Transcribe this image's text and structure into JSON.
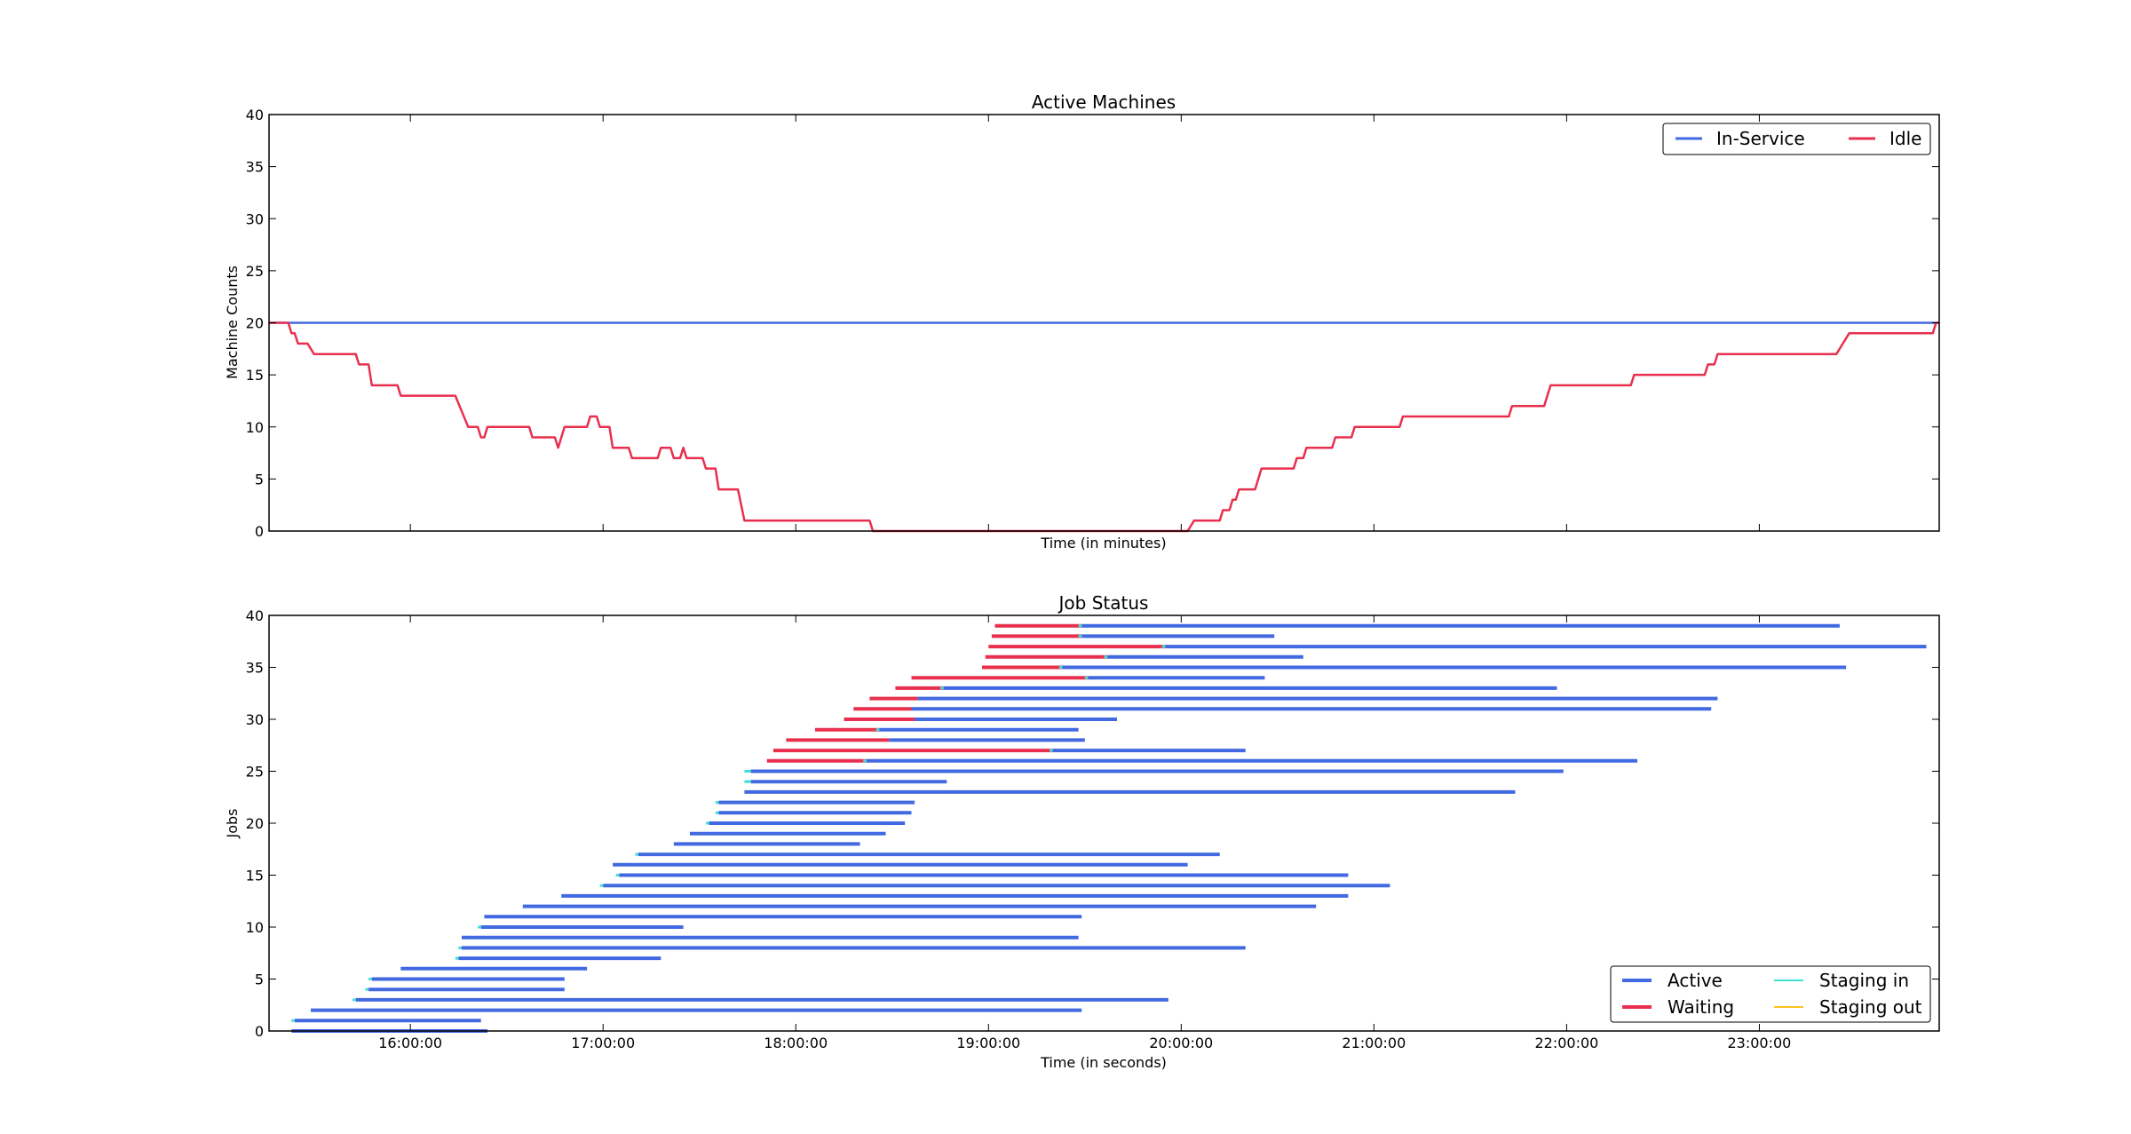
{
  "chart_data": [
    {
      "type": "line",
      "title": "Active Machines",
      "xlabel": "Time (in minutes)",
      "ylabel": "Machine Counts",
      "xlim": [
        "15:16:00",
        "23:56:00"
      ],
      "ylim": [
        0,
        40
      ],
      "y_ticks": [
        "0",
        "5",
        "10",
        "15",
        "20",
        "25",
        "30",
        "35",
        "40"
      ],
      "x_tick_labels_shown": false,
      "grid": false,
      "legend_position": "top-right",
      "series": [
        {
          "name": "In-Service",
          "color": "#4169e1",
          "points": [
            [
              "15:16:00",
              20
            ],
            [
              "23:56:00",
              20
            ]
          ]
        },
        {
          "name": "Idle",
          "color": "#e8304e",
          "points": [
            [
              "15:16:00",
              20
            ],
            [
              "15:22:00",
              20
            ],
            [
              "15:23:00",
              19
            ],
            [
              "15:24:00",
              19
            ],
            [
              "15:25:00",
              18
            ],
            [
              "15:28:00",
              18
            ],
            [
              "15:30:00",
              17
            ],
            [
              "15:43:00",
              17
            ],
            [
              "15:44:00",
              16
            ],
            [
              "15:47:00",
              16
            ],
            [
              "15:48:00",
              14
            ],
            [
              "15:56:00",
              14
            ],
            [
              "15:57:00",
              13
            ],
            [
              "16:14:00",
              13
            ],
            [
              "16:18:00",
              10
            ],
            [
              "16:21:00",
              10
            ],
            [
              "16:22:00",
              9
            ],
            [
              "16:23:00",
              9
            ],
            [
              "16:24:00",
              10
            ],
            [
              "16:37:00",
              10
            ],
            [
              "16:38:00",
              9
            ],
            [
              "16:45:00",
              9
            ],
            [
              "16:46:00",
              8
            ],
            [
              "16:48:00",
              10
            ],
            [
              "16:55:00",
              10
            ],
            [
              "16:56:00",
              11
            ],
            [
              "16:58:00",
              11
            ],
            [
              "16:59:00",
              10
            ],
            [
              "17:02:00",
              10
            ],
            [
              "17:03:00",
              8
            ],
            [
              "17:08:00",
              8
            ],
            [
              "17:09:00",
              7
            ],
            [
              "17:17:00",
              7
            ],
            [
              "17:18:00",
              8
            ],
            [
              "17:21:00",
              8
            ],
            [
              "17:22:00",
              7
            ],
            [
              "17:24:00",
              7
            ],
            [
              "17:25:00",
              8
            ],
            [
              "17:26:00",
              7
            ],
            [
              "17:31:00",
              7
            ],
            [
              "17:32:00",
              6
            ],
            [
              "17:35:00",
              6
            ],
            [
              "17:36:00",
              4
            ],
            [
              "17:42:00",
              4
            ],
            [
              "17:44:00",
              1
            ],
            [
              "18:23:00",
              1
            ],
            [
              "18:24:00",
              0
            ],
            [
              "20:02:00",
              0
            ],
            [
              "20:04:00",
              1
            ],
            [
              "20:12:00",
              1
            ],
            [
              "20:13:00",
              2
            ],
            [
              "20:15:00",
              2
            ],
            [
              "20:16:00",
              3
            ],
            [
              "20:17:00",
              3
            ],
            [
              "20:18:00",
              4
            ],
            [
              "20:23:00",
              4
            ],
            [
              "20:24:00",
              5
            ],
            [
              "20:25:00",
              6
            ],
            [
              "20:35:00",
              6
            ],
            [
              "20:36:00",
              7
            ],
            [
              "20:38:00",
              7
            ],
            [
              "20:39:00",
              8
            ],
            [
              "20:47:00",
              8
            ],
            [
              "20:48:00",
              9
            ],
            [
              "20:53:00",
              9
            ],
            [
              "20:54:00",
              10
            ],
            [
              "21:08:00",
              10
            ],
            [
              "21:09:00",
              11
            ],
            [
              "21:42:00",
              11
            ],
            [
              "21:43:00",
              12
            ],
            [
              "21:53:00",
              12
            ],
            [
              "21:54:00",
              13
            ],
            [
              "21:55:00",
              14
            ],
            [
              "22:20:00",
              14
            ],
            [
              "22:21:00",
              15
            ],
            [
              "22:43:00",
              15
            ],
            [
              "22:44:00",
              16
            ],
            [
              "22:46:00",
              16
            ],
            [
              "22:47:00",
              17
            ],
            [
              "23:24:00",
              17
            ],
            [
              "23:26:00",
              18
            ],
            [
              "23:28:00",
              19
            ],
            [
              "23:54:00",
              19
            ],
            [
              "23:55:00",
              20
            ],
            [
              "23:56:00",
              20
            ]
          ]
        }
      ]
    },
    {
      "type": "bar",
      "orientation": "horizontal-timeline",
      "title": "Job Status",
      "xlabel": "Time (in seconds)",
      "ylabel": "Jobs",
      "xlim": [
        "15:16:00",
        "23:56:00"
      ],
      "ylim": [
        0,
        40
      ],
      "y_ticks": [
        "0",
        "5",
        "10",
        "15",
        "20",
        "25",
        "30",
        "35",
        "40"
      ],
      "x_ticks": [
        "16:00:00",
        "17:00:00",
        "18:00:00",
        "19:00:00",
        "20:00:00",
        "21:00:00",
        "22:00:00",
        "23:00:00"
      ],
      "grid": false,
      "legend_position": "bottom-right",
      "legend": [
        {
          "name": "Active",
          "color": "#4169e1"
        },
        {
          "name": "Waiting",
          "color": "#e8304e"
        },
        {
          "name": "Staging in",
          "color": "#40e0d0"
        },
        {
          "name": "Staging out",
          "color": "#ffc125"
        }
      ],
      "jobs": [
        {
          "job": 0,
          "active": [
            "15:23:00",
            "16:24:00"
          ]
        },
        {
          "job": 1,
          "active": [
            "15:24:00",
            "16:22:00"
          ],
          "staging_in": [
            "15:23:00",
            "15:24:00"
          ]
        },
        {
          "job": 2,
          "active": [
            "15:29:00",
            "19:29:00"
          ]
        },
        {
          "job": 3,
          "active": [
            "15:43:00",
            "19:56:00"
          ],
          "staging_in": [
            "15:42:00",
            "15:43:00"
          ]
        },
        {
          "job": 4,
          "active": [
            "15:47:00",
            "16:48:00"
          ],
          "staging_in": [
            "15:46:00",
            "15:47:00"
          ]
        },
        {
          "job": 5,
          "active": [
            "15:48:00",
            "16:48:00"
          ],
          "staging_in": [
            "15:47:00",
            "15:48:00"
          ]
        },
        {
          "job": 6,
          "active": [
            "15:57:00",
            "16:55:00"
          ]
        },
        {
          "job": 7,
          "active": [
            "16:15:00",
            "17:18:00"
          ],
          "staging_in": [
            "16:14:00",
            "16:15:00"
          ]
        },
        {
          "job": 8,
          "active": [
            "16:16:00",
            "20:20:00"
          ],
          "staging_in": [
            "16:15:00",
            "16:16:00"
          ]
        },
        {
          "job": 9,
          "active": [
            "16:16:00",
            "19:28:00"
          ]
        },
        {
          "job": 10,
          "active": [
            "16:22:00",
            "17:25:00"
          ],
          "staging_in": [
            "16:21:00",
            "16:22:00"
          ]
        },
        {
          "job": 11,
          "active": [
            "16:23:00",
            "19:29:00"
          ]
        },
        {
          "job": 12,
          "active": [
            "16:35:00",
            "20:42:00"
          ]
        },
        {
          "job": 13,
          "active": [
            "16:47:00",
            "20:52:00"
          ]
        },
        {
          "job": 14,
          "active": [
            "17:00:00",
            "21:05:00"
          ],
          "staging_in": [
            "16:59:00",
            "17:00:00"
          ]
        },
        {
          "job": 15,
          "active": [
            "17:05:00",
            "20:52:00"
          ],
          "staging_in": [
            "17:04:00",
            "17:05:00"
          ]
        },
        {
          "job": 16,
          "active": [
            "17:03:00",
            "20:02:00"
          ]
        },
        {
          "job": 17,
          "active": [
            "17:11:00",
            "20:12:00"
          ],
          "staging_in": [
            "17:10:00",
            "17:11:00"
          ]
        },
        {
          "job": 18,
          "active": [
            "17:22:00",
            "18:20:00"
          ]
        },
        {
          "job": 19,
          "active": [
            "17:27:00",
            "18:28:00"
          ]
        },
        {
          "job": 20,
          "active": [
            "17:33:00",
            "18:34:00"
          ],
          "staging_in": [
            "17:32:00",
            "17:33:00"
          ]
        },
        {
          "job": 21,
          "active": [
            "17:36:00",
            "18:36:00"
          ],
          "staging_in": [
            "17:35:00",
            "17:36:00"
          ]
        },
        {
          "job": 22,
          "active": [
            "17:36:00",
            "18:37:00"
          ],
          "staging_in": [
            "17:35:00",
            "17:36:00"
          ]
        },
        {
          "job": 23,
          "active": [
            "17:44:00",
            "21:44:00"
          ]
        },
        {
          "job": 24,
          "active": [
            "17:46:00",
            "18:47:00"
          ],
          "staging_in": [
            "17:44:00",
            "17:46:00"
          ]
        },
        {
          "job": 25,
          "active": [
            "17:46:00",
            "21:59:00"
          ],
          "staging_in": [
            "17:44:00",
            "17:46:00"
          ]
        },
        {
          "job": 26,
          "waiting": [
            "17:51:00",
            "18:22:00"
          ],
          "active": [
            "18:22:00",
            "22:22:00"
          ],
          "staging_in": [
            "18:21:00",
            "18:22:00"
          ]
        },
        {
          "job": 27,
          "waiting": [
            "17:53:00",
            "19:20:00"
          ],
          "active": [
            "19:20:00",
            "20:20:00"
          ],
          "staging_in": [
            "19:19:00",
            "19:20:00"
          ]
        },
        {
          "job": 28,
          "waiting": [
            "17:57:00",
            "18:29:00"
          ],
          "active": [
            "18:29:00",
            "19:30:00"
          ]
        },
        {
          "job": 29,
          "waiting": [
            "18:06:00",
            "18:26:00"
          ],
          "active": [
            "18:26:00",
            "19:28:00"
          ],
          "staging_in": [
            "18:25:00",
            "18:26:00"
          ]
        },
        {
          "job": 30,
          "waiting": [
            "18:15:00",
            "18:37:00"
          ],
          "active": [
            "18:37:00",
            "19:40:00"
          ]
        },
        {
          "job": 31,
          "waiting": [
            "18:18:00",
            "18:36:00"
          ],
          "active": [
            "18:36:00",
            "22:45:00"
          ]
        },
        {
          "job": 32,
          "waiting": [
            "18:23:00",
            "18:38:00"
          ],
          "active": [
            "18:38:00",
            "22:47:00"
          ]
        },
        {
          "job": 33,
          "waiting": [
            "18:31:00",
            "18:46:00"
          ],
          "active": [
            "18:46:00",
            "21:57:00"
          ],
          "staging_in": [
            "18:45:00",
            "18:46:00"
          ]
        },
        {
          "job": 34,
          "waiting": [
            "18:36:00",
            "19:31:00"
          ],
          "active": [
            "19:31:00",
            "20:26:00"
          ],
          "staging_in": [
            "19:30:00",
            "19:31:00"
          ]
        },
        {
          "job": 35,
          "waiting": [
            "18:58:00",
            "19:23:00"
          ],
          "active": [
            "19:23:00",
            "23:27:00"
          ],
          "staging_in": [
            "19:22:00",
            "19:23:00"
          ]
        },
        {
          "job": 36,
          "waiting": [
            "18:59:00",
            "19:37:00"
          ],
          "active": [
            "19:37:00",
            "20:38:00"
          ],
          "staging_in": [
            "19:36:00",
            "19:37:00"
          ]
        },
        {
          "job": 37,
          "waiting": [
            "19:00:00",
            "19:55:00"
          ],
          "active": [
            "19:55:00",
            "23:52:00"
          ],
          "staging_in": [
            "19:54:00",
            "19:55:00"
          ]
        },
        {
          "job": 38,
          "waiting": [
            "19:01:00",
            "19:29:00"
          ],
          "active": [
            "19:29:00",
            "20:29:00"
          ],
          "staging_in": [
            "19:28:00",
            "19:29:00"
          ]
        },
        {
          "job": 39,
          "waiting": [
            "19:02:00",
            "19:29:00"
          ],
          "active": [
            "19:29:00",
            "23:25:00"
          ],
          "staging_in": [
            "19:28:00",
            "19:29:00"
          ]
        }
      ]
    }
  ]
}
